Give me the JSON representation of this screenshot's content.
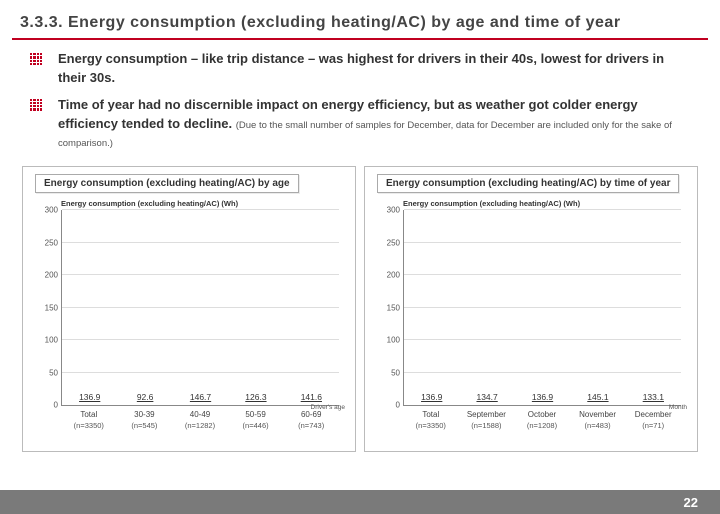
{
  "heading": "3.3.3. Energy consumption (excluding heating/AC) by age and time of year",
  "bullets": [
    {
      "main": "Energy consumption – like trip distance – was highest for drivers in their 40s, lowest for drivers in their 30s.",
      "fine": ""
    },
    {
      "main": "Time of year had no discernible impact on energy efficiency, but as weather got colder energy efficiency tended to decline.",
      "fine": "(Due to the small number of samples for December, data for December are included only for the sake of comparison.)"
    }
  ],
  "footer_page": "22",
  "colors": {
    "accent_bar": "#8fc544",
    "series_bar": "#4f7c78",
    "rule": "#c00020",
    "grid": "#dddddd",
    "panel_border": "#bbbbbb",
    "footer_bg": "#7a7a7a"
  },
  "chart_left": {
    "title": "Energy consumption (excluding heating/AC) by age",
    "subtitle": "Energy consumption (excluding heating/AC) (Wh)",
    "ylim": [
      0,
      300
    ],
    "ytick_step": 50,
    "axis_caption": "Driver's age",
    "bars": [
      {
        "label": "Total",
        "n": "(n=3350)",
        "value": 136.9,
        "color": "#8fc544"
      },
      {
        "label": "30-39",
        "n": "(n=545)",
        "value": 92.6,
        "color": "#4f7c78"
      },
      {
        "label": "40-49",
        "n": "(n=1282)",
        "value": 146.7,
        "color": "#4f7c78"
      },
      {
        "label": "50-59",
        "n": "(n=446)",
        "value": 126.3,
        "color": "#4f7c78"
      },
      {
        "label": "60-69",
        "n": "(n=743)",
        "value": 141.6,
        "color": "#4f7c78"
      }
    ]
  },
  "chart_right": {
    "title": "Energy consumption (excluding heating/AC) by time of year",
    "subtitle": "Energy consumption (excluding heating/AC) (Wh)",
    "ylim": [
      0,
      300
    ],
    "ytick_step": 50,
    "axis_caption": "Month",
    "bars": [
      {
        "label": "Total",
        "n": "(n=3350)",
        "value": 136.9,
        "color": "#8fc544"
      },
      {
        "label": "September",
        "n": "(n=1588)",
        "value": 134.7,
        "color": "#4f7c78"
      },
      {
        "label": "October",
        "n": "(n=1208)",
        "value": 136.9,
        "color": "#4f7c78"
      },
      {
        "label": "November",
        "n": "(n=483)",
        "value": 145.1,
        "color": "#4f7c78"
      },
      {
        "label": "December",
        "n": "(n=71)",
        "value": 133.1,
        "color": "#4f7c78"
      }
    ]
  }
}
